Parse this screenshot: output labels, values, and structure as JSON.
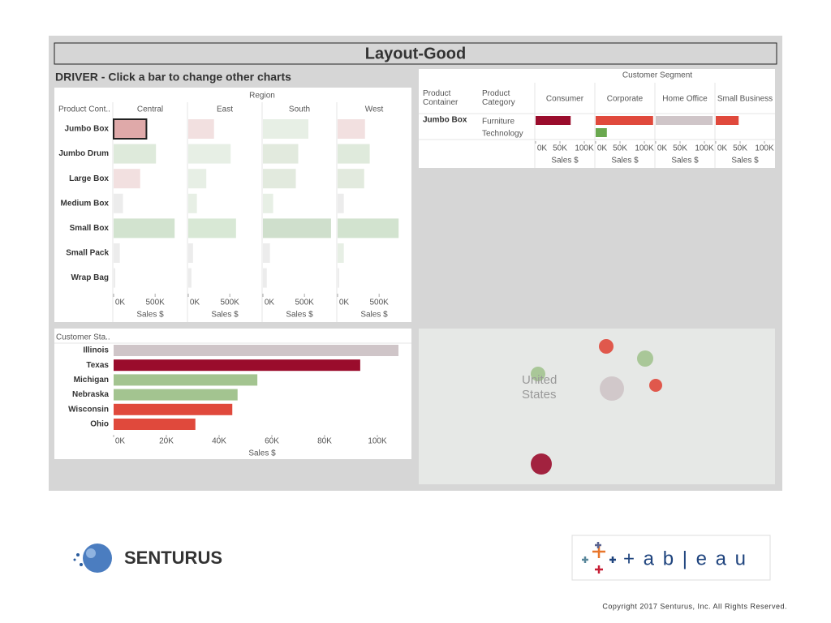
{
  "title": "Layout-Good",
  "driver_title": "DRIVER - Click a bar to change other charts",
  "region_chart": {
    "type": "bar",
    "header": "Region",
    "row_header": "Product Cont..",
    "categories": [
      "Jumbo Box",
      "Jumbo Drum",
      "Large Box",
      "Medium Box",
      "Small Box",
      "Small Pack",
      "Wrap Bag"
    ],
    "panels": [
      {
        "name": "Central",
        "values": [
          395000,
          510000,
          320000,
          113000,
          735000,
          75000,
          20000
        ],
        "colors": [
          "#dfa9a9",
          "#deeadb",
          "#f2e0e0",
          "#ececec",
          "#d2e3cf",
          "#ececec",
          "#ececec"
        ]
      },
      {
        "name": "East",
        "values": [
          310000,
          510000,
          217000,
          104000,
          575000,
          57000,
          38000
        ],
        "colors": [
          "#f2e0e0",
          "#e7efe5",
          "#e7efe5",
          "#e7efe5",
          "#d8e8d5",
          "#ececec",
          "#ececec"
        ]
      },
      {
        "name": "South",
        "values": [
          547000,
          425000,
          396000,
          123000,
          820000,
          85000,
          47000
        ],
        "colors": [
          "#e7efe5",
          "#e2eade",
          "#e2eade",
          "#e7efe5",
          "#cfdfcc",
          "#ececec",
          "#ececec"
        ]
      },
      {
        "name": "West",
        "values": [
          330000,
          387000,
          320000,
          75000,
          735000,
          75000,
          19000
        ],
        "colors": [
          "#f2e0e0",
          "#dfeadc",
          "#e2eade",
          "#ececec",
          "#d2e3cf",
          "#e7efe5",
          "#ececec"
        ]
      }
    ],
    "xlim": [
      0,
      860000
    ],
    "xticks": [
      {
        "value": 0,
        "label": "0K"
      },
      {
        "value": 500000,
        "label": "500K"
      }
    ],
    "xlabel": "Sales $"
  },
  "segment_chart": {
    "type": "bar",
    "header": "Customer Segment",
    "col_headers": [
      "Product Container",
      "Product Category"
    ],
    "container": "Jumbo Box",
    "categories": [
      "Furniture",
      "Technology"
    ],
    "panels": [
      {
        "name": "Consumer",
        "values": [
          72000,
          null
        ],
        "colors": [
          "#9a0c2c",
          "#6aa84f"
        ]
      },
      {
        "name": "Corporate",
        "values": [
          118000,
          23000
        ],
        "colors": [
          "#e0493c",
          "#6aa84f"
        ]
      },
      {
        "name": "Home Office",
        "values": [
          117000,
          null
        ],
        "colors": [
          "#cfc5c8",
          "#6aa84f"
        ]
      },
      {
        "name": "Small Business",
        "values": [
          47000,
          null
        ],
        "colors": [
          "#e0493c",
          "#6aa84f"
        ]
      }
    ],
    "xlim": [
      0,
      120000
    ],
    "xticks": [
      {
        "value": 0,
        "label": "0K"
      },
      {
        "value": 50000,
        "label": "50K"
      },
      {
        "value": 100000,
        "label": "100K"
      }
    ],
    "xlabel": "Sales $"
  },
  "state_chart": {
    "type": "bar",
    "header": "Customer Sta..",
    "categories": [
      "Illinois",
      "Texas",
      "Michigan",
      "Nebraska",
      "Wisconsin",
      "Ohio"
    ],
    "values": [
      108000,
      93500,
      54500,
      47000,
      45000,
      31000
    ],
    "colors": [
      "#cfc5c8",
      "#9a0c2c",
      "#a3c490",
      "#a3c490",
      "#e0493c",
      "#e0493c"
    ],
    "xlim": [
      0,
      112000
    ],
    "xticks": [
      {
        "value": 0,
        "label": "0K"
      },
      {
        "value": 20000,
        "label": "20K"
      },
      {
        "value": 40000,
        "label": "40K"
      },
      {
        "value": 60000,
        "label": "60K"
      },
      {
        "value": 80000,
        "label": "80K"
      },
      {
        "value": 100000,
        "label": "100K"
      }
    ],
    "xlabel": "Sales $"
  },
  "map": {
    "labels": [
      "United",
      "States"
    ]
  },
  "footer": {
    "brand": "SENTURUS",
    "tableau": "+ a b | e a u",
    "copyright": "Copyright 2017  Senturus, Inc.  All Rights Reserved."
  }
}
